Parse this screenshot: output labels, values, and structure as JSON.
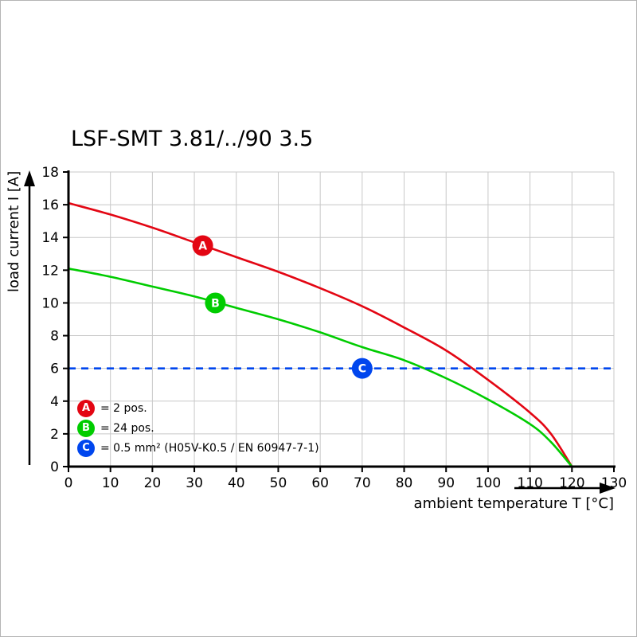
{
  "chart_data": {
    "type": "line",
    "title": "LSF-SMT 3.81/../90 3.5",
    "xlabel": "ambient temperature T [°C]",
    "ylabel": "load current I [A]",
    "xlim": [
      0,
      130
    ],
    "ylim": [
      0,
      18
    ],
    "xticks": [
      0,
      10,
      20,
      30,
      40,
      50,
      60,
      70,
      80,
      90,
      100,
      110,
      120,
      130
    ],
    "yticks": [
      0,
      2,
      4,
      6,
      8,
      10,
      12,
      14,
      16,
      18
    ],
    "grid": true,
    "legend_position": "bottom-left-inside",
    "series": [
      {
        "name": "A",
        "legend_label": "= 2 pos.",
        "color": "#e30613",
        "style": "solid",
        "points": [
          [
            0,
            16.1
          ],
          [
            10,
            15.4
          ],
          [
            20,
            14.6
          ],
          [
            30,
            13.7
          ],
          [
            40,
            12.8
          ],
          [
            50,
            11.9
          ],
          [
            60,
            10.9
          ],
          [
            70,
            9.8
          ],
          [
            80,
            8.5
          ],
          [
            90,
            7.1
          ],
          [
            100,
            5.3
          ],
          [
            110,
            3.3
          ],
          [
            115,
            2.0
          ],
          [
            120,
            0
          ]
        ],
        "marker": {
          "x": 32,
          "y": 13.5,
          "letter": "A"
        }
      },
      {
        "name": "B",
        "legend_label": "= 24 pos.",
        "color": "#00cc00",
        "style": "solid",
        "points": [
          [
            0,
            12.1
          ],
          [
            10,
            11.6
          ],
          [
            20,
            11.0
          ],
          [
            30,
            10.4
          ],
          [
            40,
            9.7
          ],
          [
            50,
            9.0
          ],
          [
            60,
            8.2
          ],
          [
            70,
            7.3
          ],
          [
            80,
            6.5
          ],
          [
            90,
            5.4
          ],
          [
            100,
            4.1
          ],
          [
            110,
            2.6
          ],
          [
            115,
            1.5
          ],
          [
            120,
            0
          ]
        ],
        "marker": {
          "x": 35,
          "y": 10,
          "letter": "B"
        }
      },
      {
        "name": "C",
        "legend_label": "= 0.5 mm² (H05V-K0.5 / EN 60947-7-1)",
        "color": "#0046ee",
        "style": "dashed",
        "points": [
          [
            0,
            6
          ],
          [
            130,
            6
          ]
        ],
        "marker": {
          "x": 70,
          "y": 6,
          "letter": "C"
        }
      }
    ]
  }
}
